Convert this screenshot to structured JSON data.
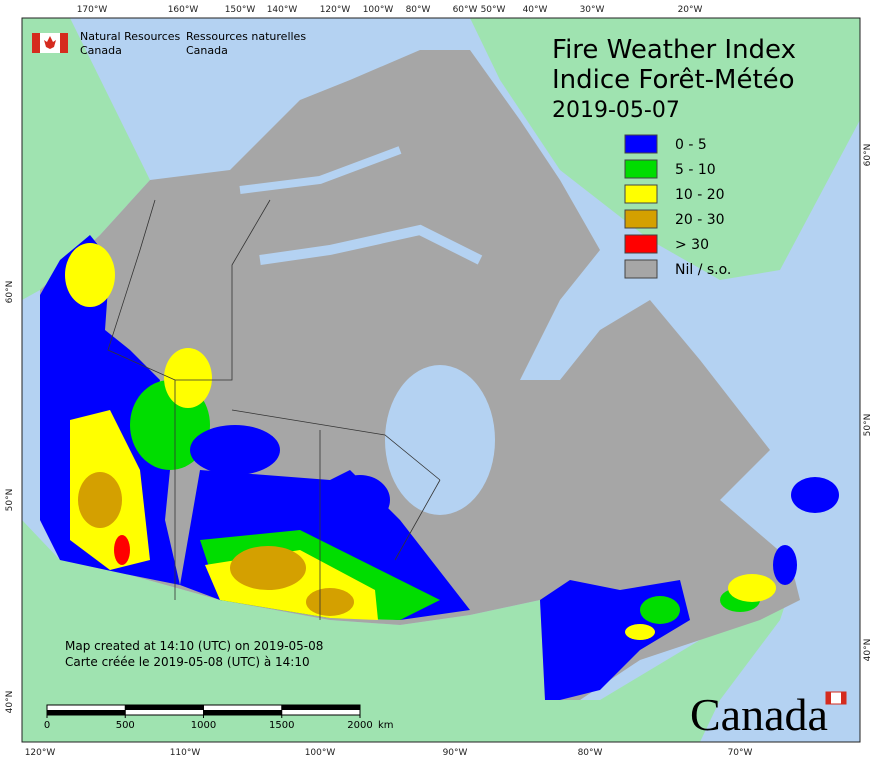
{
  "header": {
    "org_en": "Natural Resources",
    "country_en": "Canada",
    "org_fr": "Ressources naturelles",
    "country_fr": "Canada"
  },
  "title": {
    "en": "Fire Weather Index",
    "fr": "Indice Forêt-Météo",
    "date": "2019-05-07"
  },
  "legend": [
    {
      "label": "0 - 5",
      "color": "#0000ff"
    },
    {
      "label": "5 - 10",
      "color": "#00dd00"
    },
    {
      "label": "10 - 20",
      "color": "#ffff00"
    },
    {
      "label": "20 - 30",
      "color": "#d4a000"
    },
    {
      "label": "> 30",
      "color": "#ff0000"
    },
    {
      "label": "Nil / s.o.",
      "color": "#a6a6a6"
    }
  ],
  "credits": [
    "Map created at 14:10 (UTC) on 2019-05-08",
    "Carte créée le 2019-05-08 (UTC) à 14:10"
  ],
  "scale_bar": {
    "ticks": [
      0,
      500,
      1000,
      1500,
      2000
    ],
    "unit": "km"
  },
  "graticule": {
    "top": [
      "170°W",
      "160°W",
      "150°W",
      "140°W",
      "120°W",
      "100°W",
      "80°W",
      "60°W",
      "50°W",
      "40°W",
      "30°W",
      "20°W"
    ],
    "bottom": [
      "120°W",
      "110°W",
      "100°W",
      "90°W",
      "80°W",
      "70°W"
    ],
    "left": [
      "60°N",
      "50°N",
      "40°N"
    ],
    "right": [
      "60°N",
      "50°N",
      "40°N"
    ]
  },
  "wordmark": "Canada"
}
